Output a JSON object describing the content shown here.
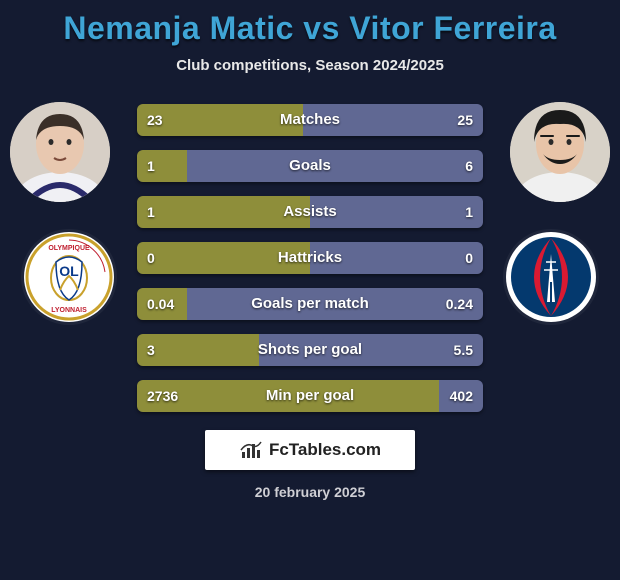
{
  "title": "Nemanja Matic vs Vitor Ferreira",
  "subtitle": "Club competitions, Season 2024/2025",
  "date": "20 february 2025",
  "brand": "FcTables.com",
  "colors": {
    "background": "#141b31",
    "title": "#3fa5d6",
    "bar_left": "#8e8e3a",
    "bar_right": "#606893",
    "white": "#ffffff"
  },
  "player_left": {
    "name": "Nemanja Matic",
    "skin": "#e8c8b0",
    "hair": "#3a2f28",
    "jersey": "#f0f0f4",
    "accent": "#2a2a6a"
  },
  "player_right": {
    "name": "Vitor Ferreira",
    "skin": "#e8c4a8",
    "hair": "#1a1a1a",
    "jersey": "#f0f0f0",
    "accent": "#333"
  },
  "club_left": {
    "name": "Olympique Lyonnais",
    "bg": "#ffffff",
    "primary": "#c9a12c",
    "secondary": "#0a3a8a",
    "text": "#c02030",
    "label_top": "OLYMPIQUE",
    "label_bottom": "LYONNAIS"
  },
  "club_right": {
    "name": "Paris Saint-Germain",
    "bg": "#ffffff",
    "primary": "#04396e",
    "secondary": "#da1a32",
    "tower": "#ffffff"
  },
  "bar_total_width": 346,
  "stats": [
    {
      "label": "Matches",
      "left_val": "23",
      "right_val": "25",
      "left_w": 166,
      "right_w": 180
    },
    {
      "label": "Goals",
      "left_val": "1",
      "right_val": "6",
      "left_w": 50,
      "right_w": 296
    },
    {
      "label": "Assists",
      "left_val": "1",
      "right_val": "1",
      "left_w": 173,
      "right_w": 173
    },
    {
      "label": "Hattricks",
      "left_val": "0",
      "right_val": "0",
      "left_w": 173,
      "right_w": 173
    },
    {
      "label": "Goals per match",
      "left_val": "0.04",
      "right_val": "0.24",
      "left_w": 50,
      "right_w": 296
    },
    {
      "label": "Shots per goal",
      "left_val": "3",
      "right_val": "5.5",
      "left_w": 122,
      "right_w": 224
    },
    {
      "label": "Min per goal",
      "left_val": "2736",
      "right_val": "402",
      "left_w": 302,
      "right_w": 44
    }
  ]
}
